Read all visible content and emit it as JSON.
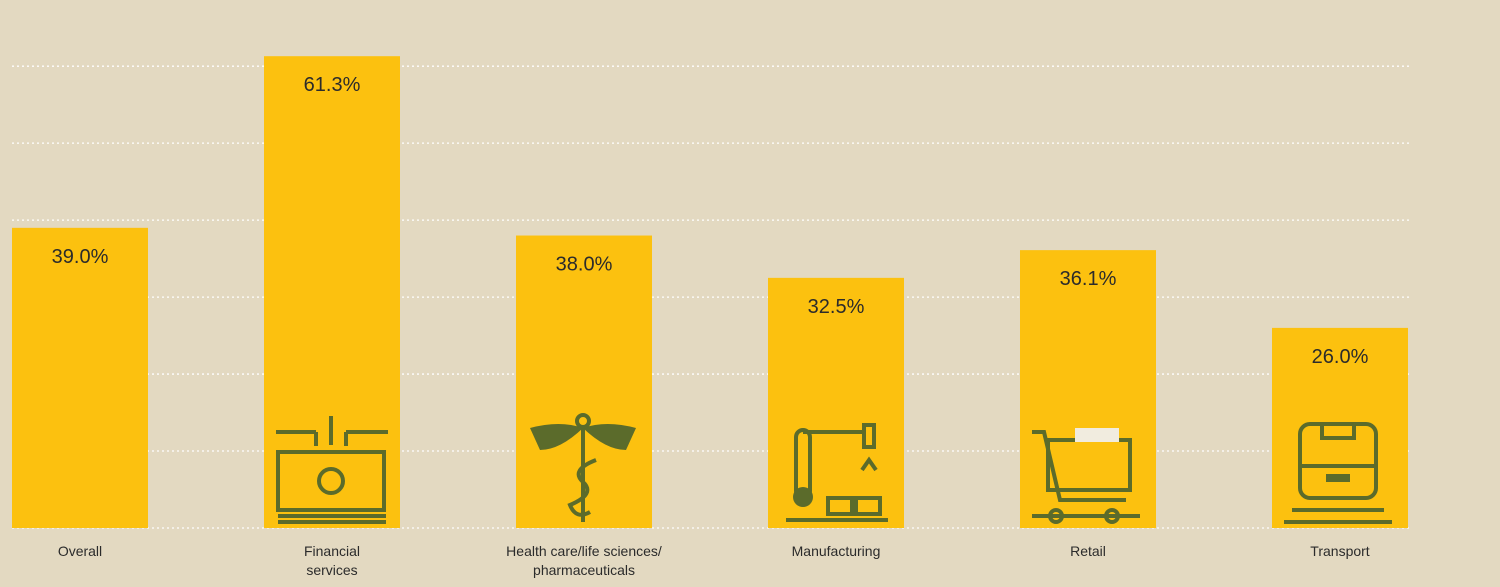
{
  "chart_data": {
    "type": "bar",
    "categories": [
      "Overall",
      "Financial services",
      "Health care/life sciences/ pharmaceuticals",
      "Manufacturing",
      "Retail",
      "Transport"
    ],
    "values": [
      39.0,
      61.3,
      38.0,
      32.5,
      36.1,
      26.0
    ],
    "value_labels": [
      "39.0%",
      "61.3%",
      "38.0%",
      "32.5%",
      "36.1%",
      "26.0%"
    ],
    "color": "#fcc10f",
    "ylim": [
      0,
      68.6
    ],
    "yticks": [
      0,
      10,
      20,
      30,
      40,
      50,
      60
    ],
    "grid": true
  }
}
